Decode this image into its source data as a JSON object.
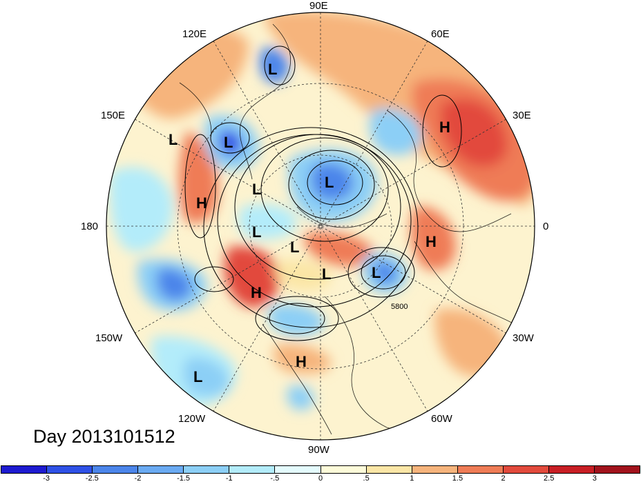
{
  "title": "Day 2013101512",
  "lon_labels": {
    "lon_90e": "90E",
    "lon_120e": "120E",
    "lon_60e": "60E",
    "lon_150e": "150E",
    "lon_30e": "30E",
    "lon_180": "180",
    "lon_0": "0",
    "lon_150w": "150W",
    "lon_30w": "30W",
    "lon_120w": "120W",
    "lon_60w": "60W",
    "lon_90w": "90W"
  },
  "contour_label": "5800",
  "pressure_centers": {
    "H": "H",
    "L": "L"
  },
  "colorbar": {
    "ticks": [
      "-3",
      "-2.5",
      "-2",
      "-1.5",
      "-1",
      "-.5",
      "0",
      ".5",
      "1",
      "1.5",
      "2",
      "2.5",
      "3"
    ],
    "colors": [
      "#1d1ad0",
      "#2e50e6",
      "#4b85ea",
      "#6aaaf2",
      "#8ccff6",
      "#b3ecfa",
      "#e4fbfd",
      "#fdfbd9",
      "#fbe6a6",
      "#f6b47c",
      "#ef7c56",
      "#e24a3c",
      "#c81e24",
      "#a1121c"
    ]
  }
}
